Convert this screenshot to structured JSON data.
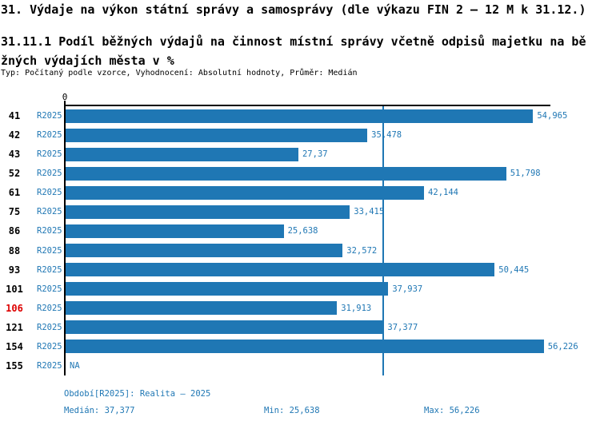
{
  "title": "31. Výdaje na výkon státní správy a samosprávy (dle výkazu FIN 2 – 12 M k 31.12.)",
  "subtitle": "31.11.1 Podíl běžných výdajů na činnost místní správy včetně odpisů majetku na běžných výdajích města v %",
  "meta_line": "Typ: Počítaný podle vzorce, Vyhodnocení: Absolutní hodnoty, Průměr: Medián",
  "axis": {
    "zero_label": "0"
  },
  "colors": {
    "bar_blue": "#1f77b4",
    "label_blue": "#1f77b4",
    "highlight_red": "#dd0000",
    "axis_black": "#000000",
    "median_line_blue": "#1f77b4"
  },
  "rows": [
    {
      "id": "41",
      "period": "R2025",
      "value": 54.965,
      "value_label": "54,965",
      "highlight": false
    },
    {
      "id": "42",
      "period": "R2025",
      "value": 35.478,
      "value_label": "35,478",
      "highlight": false
    },
    {
      "id": "43",
      "period": "R2025",
      "value": 27.37,
      "value_label": "27,37",
      "highlight": false
    },
    {
      "id": "52",
      "period": "R2025",
      "value": 51.798,
      "value_label": "51,798",
      "highlight": false
    },
    {
      "id": "61",
      "period": "R2025",
      "value": 42.144,
      "value_label": "42,144",
      "highlight": false
    },
    {
      "id": "75",
      "period": "R2025",
      "value": 33.415,
      "value_label": "33,415",
      "highlight": false
    },
    {
      "id": "86",
      "period": "R2025",
      "value": 25.638,
      "value_label": "25,638",
      "highlight": false
    },
    {
      "id": "88",
      "period": "R2025",
      "value": 32.572,
      "value_label": "32,572",
      "highlight": false
    },
    {
      "id": "93",
      "period": "R2025",
      "value": 50.445,
      "value_label": "50,445",
      "highlight": false
    },
    {
      "id": "101",
      "period": "R2025",
      "value": 37.937,
      "value_label": "37,937",
      "highlight": false
    },
    {
      "id": "106",
      "period": "R2025",
      "value": 31.913,
      "value_label": "31,913",
      "highlight": true
    },
    {
      "id": "121",
      "period": "R2025",
      "value": 37.377,
      "value_label": "37,377",
      "highlight": false
    },
    {
      "id": "154",
      "period": "R2025",
      "value": 56.226,
      "value_label": "56,226",
      "highlight": false
    },
    {
      "id": "155",
      "period": "R2025",
      "value": null,
      "value_label": "NA",
      "highlight": false
    }
  ],
  "footer": {
    "period_line": "Období[R2025]: Realita – 2025",
    "median_label": "Medián: 37,377",
    "min_label": "Min: 25,638",
    "max_label": "Max: 56,226"
  },
  "chart_data": {
    "type": "bar",
    "orientation": "horizontal",
    "title": "31.11.1 Podíl běžných výdajů na činnost místní správy včetně odpisů majetku na běžných výdajích města v %",
    "categories": [
      "41",
      "42",
      "43",
      "52",
      "61",
      "75",
      "86",
      "88",
      "93",
      "101",
      "106",
      "121",
      "154",
      "155"
    ],
    "series": [
      {
        "name": "R2025",
        "values": [
          54.965,
          35.478,
          27.37,
          51.798,
          42.144,
          33.415,
          25.638,
          32.572,
          50.445,
          37.937,
          31.913,
          37.377,
          56.226,
          null
        ]
      }
    ],
    "xlabel": "",
    "ylabel": "",
    "xlim": [
      0,
      57
    ],
    "grid": false,
    "legend": false,
    "median": 37.377,
    "min": 25.638,
    "max": 56.226,
    "median_reference_line": 37.377,
    "na_label": "NA",
    "highlighted_category": "106"
  }
}
